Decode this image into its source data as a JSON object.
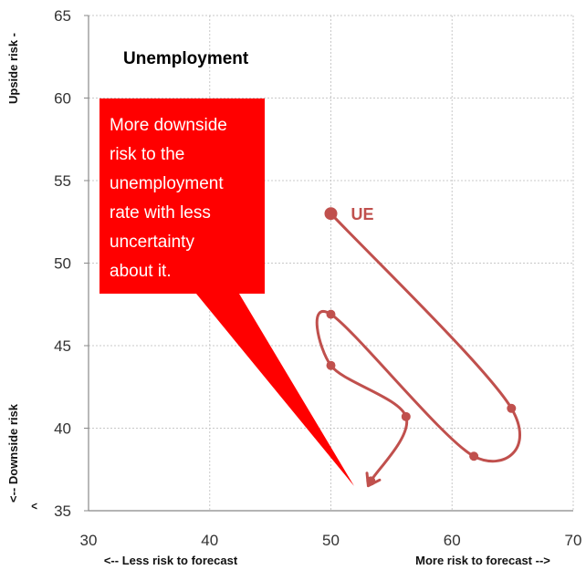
{
  "chart_data": {
    "type": "scatter",
    "title": "Unemployment",
    "xlim": [
      30,
      70
    ],
    "ylim": [
      35,
      65
    ],
    "x_ticks": [
      "30",
      "40",
      "50",
      "60",
      "70"
    ],
    "y_ticks": [
      "35",
      "40",
      "45",
      "50",
      "55",
      "60",
      "65"
    ],
    "x_label_left": "<-- Less risk to forecast",
    "x_label_right": "More risk to forecast -->",
    "y_label_top": "Upside risk -",
    "y_label_bottom": "<-- Downside risk",
    "y_label_bottom_marker": "^",
    "grid": true,
    "series": [
      {
        "name": "UE",
        "color": "#c0504d",
        "x": [
          50.0,
          64.9,
          61.8,
          50.0,
          50.0,
          56.2,
          53.3
        ],
        "y": [
          53.0,
          41.2,
          38.3,
          46.9,
          43.8,
          40.7,
          36.8
        ]
      }
    ],
    "annotation": {
      "lines": [
        "More downside",
        "risk to the",
        "unemployment",
        "rate with less",
        "uncertainty",
        "about it."
      ],
      "color": "#ff0000"
    }
  }
}
